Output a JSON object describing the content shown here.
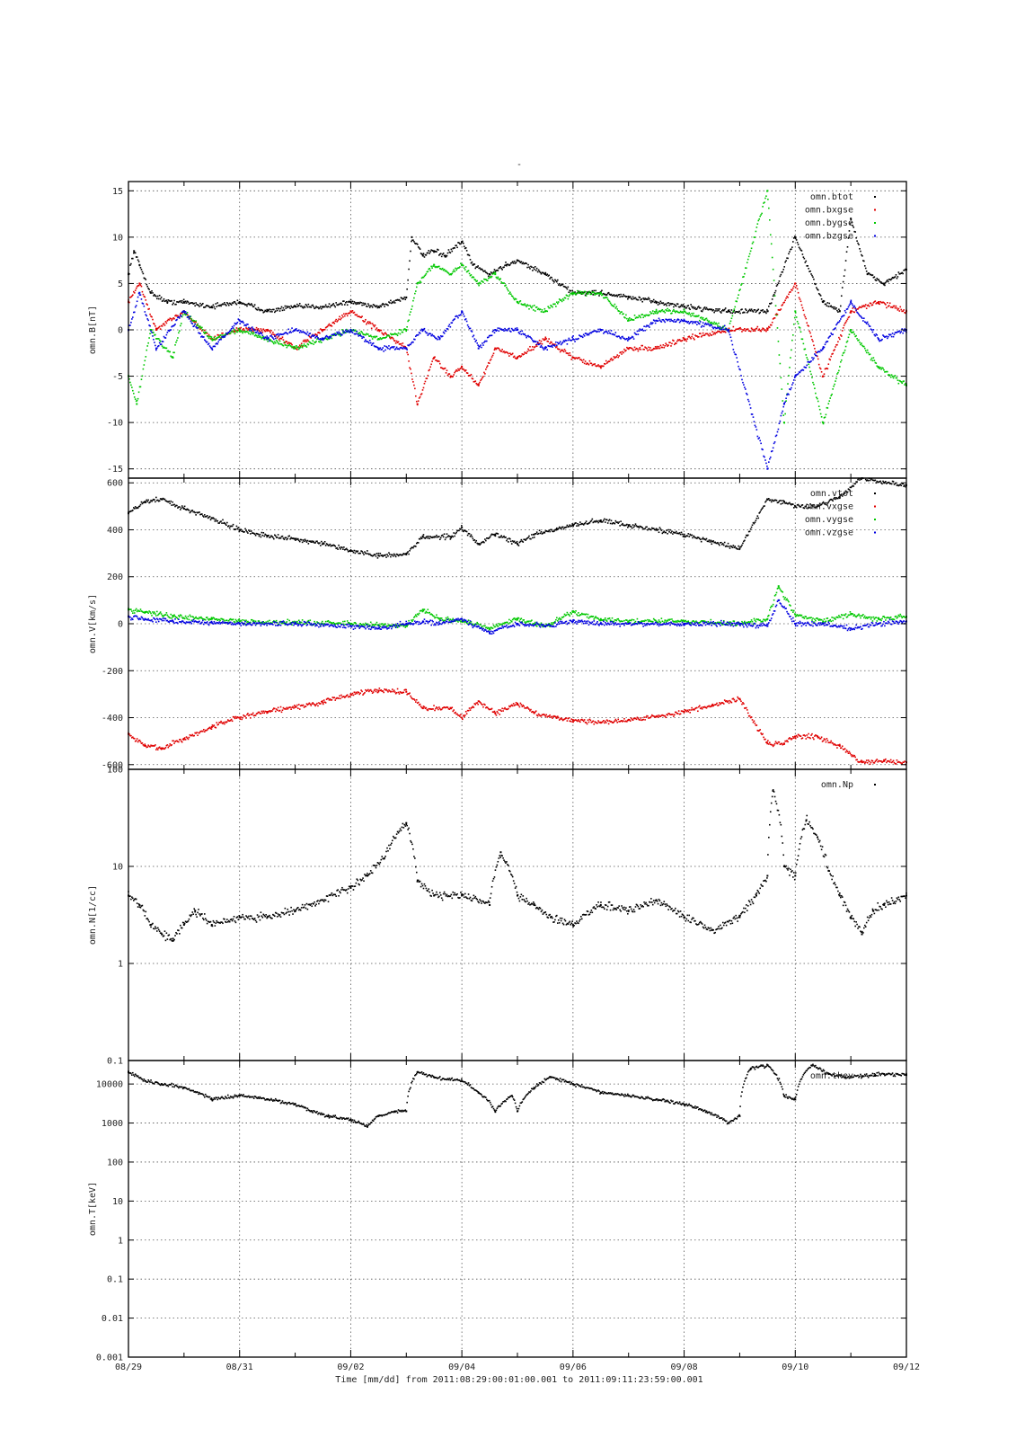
{
  "title": "-",
  "xlabel": "Time [mm/dd]  from 2011:08:29:00:01:00.001  to  2011:09:11:23:59:00.001",
  "x_tick_labels": [
    "08/29",
    "08/31",
    "09/02",
    "09/04",
    "09/06",
    "09/08",
    "09/10",
    "09/12"
  ],
  "colors": {
    "black": "#000000",
    "red": "#e00000",
    "green": "#00c800",
    "blue": "#0000e0"
  },
  "chart_data": [
    {
      "type": "scatter",
      "ylabel": "omn.B[nT]",
      "yscale": "linear",
      "ylim": [
        -16,
        16
      ],
      "yticks": [
        -15,
        -10,
        -5,
        0,
        5,
        10,
        15
      ],
      "ytick_labels": [
        "-15",
        "-10",
        "-5",
        "0",
        "5",
        "10",
        "15"
      ],
      "xlim": [
        0,
        14
      ],
      "grid": true,
      "legend_position": "top-right",
      "series": [
        {
          "name": "omn.btot",
          "color": "black",
          "x": [
            0,
            0.1,
            0.2,
            0.4,
            0.7,
            1.0,
            1.5,
            2.0,
            2.5,
            3.0,
            3.5,
            4.0,
            4.5,
            5.0,
            5.1,
            5.3,
            5.5,
            5.7,
            6.0,
            6.2,
            6.5,
            6.8,
            7.0,
            7.5,
            8.0,
            8.5,
            9.0,
            9.5,
            10.0,
            10.8,
            11.5,
            12.0,
            12.5,
            12.8,
            13.0,
            13.3,
            13.6,
            14.0
          ],
          "y": [
            6,
            8.5,
            7,
            4,
            3,
            3,
            2.5,
            3,
            2,
            2.5,
            2.5,
            3,
            2.5,
            3.5,
            10,
            8,
            8.5,
            8,
            9.5,
            7,
            6,
            7,
            7.5,
            6,
            4,
            4,
            3.5,
            3,
            2.5,
            2,
            2,
            10,
            3,
            2,
            12,
            6,
            5,
            6.5
          ]
        },
        {
          "name": "omn.bxgse",
          "color": "red",
          "x": [
            0,
            0.2,
            0.5,
            1.0,
            1.5,
            2.0,
            2.5,
            3.0,
            3.5,
            4.0,
            4.5,
            5.0,
            5.2,
            5.5,
            5.8,
            6.0,
            6.3,
            6.6,
            7.0,
            7.5,
            8.0,
            8.5,
            9.0,
            9.5,
            10.0,
            10.8,
            11.5,
            12.0,
            12.5,
            13.0,
            13.5,
            14.0
          ],
          "y": [
            3,
            5,
            0,
            2,
            -1,
            0,
            0,
            -2,
            0,
            2,
            0,
            -2,
            -8,
            -3,
            -5,
            -4,
            -6,
            -2,
            -3,
            -1,
            -3,
            -4,
            -2,
            -2,
            -1,
            0,
            0,
            5,
            -5,
            2,
            3,
            2
          ]
        },
        {
          "name": "omn.bygse",
          "color": "green",
          "x": [
            0,
            0.15,
            0.4,
            0.8,
            1.0,
            1.5,
            2.0,
            2.5,
            3.0,
            3.5,
            4.0,
            4.5,
            5.0,
            5.2,
            5.5,
            5.8,
            6.0,
            6.3,
            6.6,
            7.0,
            7.5,
            8.0,
            8.5,
            9.0,
            9.5,
            10.0,
            10.8,
            11.5,
            11.8,
            12.0,
            12.5,
            13.0,
            13.5,
            14.0
          ],
          "y": [
            -5,
            -8,
            0,
            -3,
            2,
            -1,
            0,
            -1,
            -2,
            -1,
            0,
            -1,
            0,
            5,
            7,
            6,
            7,
            5,
            6,
            3,
            2,
            4,
            4,
            1,
            2,
            2,
            0,
            15,
            -10,
            2,
            -10,
            0,
            -4,
            -6
          ]
        },
        {
          "name": "omn.bzgse",
          "color": "blue",
          "x": [
            0,
            0.2,
            0.5,
            1.0,
            1.5,
            2.0,
            2.5,
            3.0,
            3.5,
            4.0,
            4.5,
            5.0,
            5.3,
            5.6,
            6.0,
            6.3,
            6.6,
            7.0,
            7.5,
            8.0,
            8.5,
            9.0,
            9.5,
            10.0,
            10.8,
            11.5,
            11.8,
            12.0,
            12.5,
            13.0,
            13.5,
            14.0
          ],
          "y": [
            0,
            4,
            -2,
            2,
            -2,
            1,
            -1,
            0,
            -1,
            0,
            -2,
            -2,
            0,
            -1,
            2,
            -2,
            0,
            0,
            -2,
            -1,
            0,
            -1,
            1,
            1,
            0,
            -15,
            -8,
            -5,
            -2,
            3,
            -1,
            0
          ]
        }
      ]
    },
    {
      "type": "scatter",
      "ylabel": "omn.V[km/s]",
      "yscale": "linear",
      "ylim": [
        -620,
        620
      ],
      "yticks": [
        -600,
        -400,
        -200,
        0,
        200,
        400,
        600
      ],
      "ytick_labels": [
        "-600",
        "-400",
        "-200",
        "0",
        "200",
        "400",
        "600"
      ],
      "xlim": [
        0,
        14
      ],
      "grid": true,
      "legend_position": "top-right",
      "series": [
        {
          "name": "omn.vtot",
          "color": "black",
          "x": [
            0,
            0.3,
            0.6,
            1.0,
            1.5,
            2.0,
            2.5,
            3.0,
            3.5,
            4.0,
            4.5,
            5.0,
            5.3,
            5.8,
            6.0,
            6.3,
            6.6,
            7.0,
            7.3,
            7.7,
            8.0,
            8.5,
            9.0,
            9.5,
            10.0,
            10.5,
            11.0,
            11.5,
            11.8,
            12.0,
            12.4,
            12.8,
            13.2,
            13.6,
            14.0
          ],
          "y": [
            470,
            520,
            530,
            490,
            450,
            400,
            375,
            360,
            340,
            310,
            290,
            295,
            370,
            370,
            410,
            340,
            380,
            340,
            380,
            400,
            420,
            440,
            420,
            400,
            380,
            350,
            320,
            530,
            520,
            500,
            500,
            540,
            620,
            600,
            590
          ]
        },
        {
          "name": "omn.vxgse",
          "color": "red",
          "x": [
            0,
            0.3,
            0.6,
            1.0,
            1.5,
            2.0,
            2.5,
            3.0,
            3.5,
            4.0,
            4.5,
            5.0,
            5.3,
            5.8,
            6.0,
            6.3,
            6.6,
            7.0,
            7.3,
            7.7,
            8.0,
            8.5,
            9.0,
            9.5,
            10.0,
            10.5,
            11.0,
            11.5,
            11.8,
            12.0,
            12.4,
            12.8,
            13.2,
            13.6,
            14.0
          ],
          "y": [
            -470,
            -520,
            -530,
            -490,
            -440,
            -400,
            -375,
            -355,
            -335,
            -300,
            -285,
            -290,
            -360,
            -360,
            -400,
            -330,
            -380,
            -340,
            -380,
            -400,
            -410,
            -420,
            -410,
            -395,
            -375,
            -350,
            -320,
            -510,
            -510,
            -480,
            -480,
            -520,
            -590,
            -585,
            -590
          ]
        },
        {
          "name": "omn.vygse",
          "color": "green",
          "x": [
            0,
            0.3,
            0.8,
            1.5,
            2.0,
            3.0,
            4.0,
            4.5,
            5.0,
            5.3,
            5.6,
            6.0,
            6.5,
            7.0,
            7.5,
            8.0,
            8.5,
            9.0,
            10.0,
            11.0,
            11.5,
            11.7,
            12.0,
            12.5,
            13.0,
            13.5,
            14.0
          ],
          "y": [
            60,
            50,
            30,
            20,
            10,
            5,
            0,
            -5,
            -10,
            60,
            20,
            10,
            -20,
            20,
            -10,
            50,
            20,
            10,
            10,
            0,
            20,
            160,
            40,
            10,
            40,
            20,
            30
          ]
        },
        {
          "name": "omn.vzgse",
          "color": "blue",
          "x": [
            0,
            0.3,
            0.8,
            1.5,
            2.0,
            3.0,
            4.0,
            4.5,
            5.0,
            5.3,
            5.6,
            6.0,
            6.5,
            7.0,
            7.5,
            8.0,
            8.5,
            9.0,
            10.0,
            11.0,
            11.5,
            11.7,
            12.0,
            12.5,
            13.0,
            13.5,
            14.0
          ],
          "y": [
            30,
            20,
            10,
            5,
            0,
            0,
            -10,
            -20,
            0,
            10,
            0,
            20,
            -40,
            0,
            -10,
            10,
            0,
            0,
            0,
            0,
            -10,
            100,
            0,
            0,
            -20,
            0,
            10
          ]
        }
      ]
    },
    {
      "type": "scatter",
      "ylabel": "omn.N[1/cc]",
      "yscale": "log",
      "ylim": [
        0.1,
        100
      ],
      "yticks": [
        0.1,
        1,
        10,
        100
      ],
      "ytick_labels": [
        "0.1",
        "1",
        "10",
        "100"
      ],
      "xlim": [
        0,
        14
      ],
      "grid": true,
      "legend_position": "top-right",
      "series": [
        {
          "name": "omn.Np",
          "color": "black",
          "x": [
            0,
            0.2,
            0.4,
            0.6,
            0.8,
            1.0,
            1.2,
            1.5,
            2.0,
            2.5,
            3.0,
            3.5,
            4.0,
            4.3,
            4.6,
            5.0,
            5.2,
            5.5,
            6.0,
            6.5,
            6.7,
            7.0,
            7.3,
            7.6,
            8.0,
            8.5,
            9.0,
            9.5,
            10.0,
            10.5,
            11.0,
            11.3,
            11.5,
            11.6,
            11.8,
            12.0,
            12.2,
            12.4,
            12.6,
            12.8,
            13.0,
            13.2,
            13.4,
            13.6,
            14.0
          ],
          "y": [
            5,
            4,
            2.5,
            2,
            1.8,
            2.5,
            3.5,
            2.5,
            3,
            3,
            3.5,
            4.5,
            6,
            8,
            12,
            28,
            7,
            5,
            5,
            4,
            14,
            5,
            4,
            3,
            2.5,
            4,
            3.5,
            4.5,
            3,
            2.2,
            3,
            5,
            8,
            60,
            10,
            8,
            30,
            20,
            9,
            5,
            3,
            2,
            3.5,
            4,
            5
          ]
        }
      ]
    },
    {
      "type": "scatter",
      "ylabel": "omn.T[keV]",
      "yscale": "log",
      "ylim": [
        0.001,
        40000
      ],
      "yticks": [
        0.001,
        0.01,
        0.1,
        1,
        10,
        100,
        1000,
        10000
      ],
      "ytick_labels": [
        "0.001",
        "0.01",
        "0.1",
        "1",
        "10",
        "100",
        "1000",
        "10000"
      ],
      "xlim": [
        0,
        14
      ],
      "grid": true,
      "legend_position": "top-right",
      "series": [
        {
          "name": "omn.tkev",
          "color": "black",
          "x": [
            0,
            0.3,
            0.6,
            1.0,
            1.5,
            2.0,
            2.5,
            3.0,
            3.3,
            3.6,
            4.0,
            4.3,
            4.5,
            4.8,
            5.0,
            5.2,
            5.5,
            6.0,
            6.3,
            6.6,
            6.9,
            7.0,
            7.3,
            7.6,
            8.0,
            8.5,
            9.0,
            9.5,
            10.0,
            10.4,
            10.8,
            11.0,
            11.2,
            11.5,
            11.8,
            12.0,
            12.3,
            12.6,
            12.9,
            13.2,
            13.6,
            14.0
          ],
          "y": [
            20000,
            12000,
            10000,
            8000,
            4000,
            5000,
            4000,
            3000,
            2000,
            1500,
            1200,
            800,
            1500,
            2000,
            2000,
            20000,
            15000,
            12000,
            6000,
            2000,
            5000,
            2000,
            8000,
            15000,
            10000,
            6000,
            5000,
            4000,
            3000,
            2000,
            1000,
            1500,
            25000,
            30000,
            5000,
            4000,
            30000,
            18000,
            15000,
            16000,
            18000,
            17000
          ]
        }
      ]
    }
  ]
}
